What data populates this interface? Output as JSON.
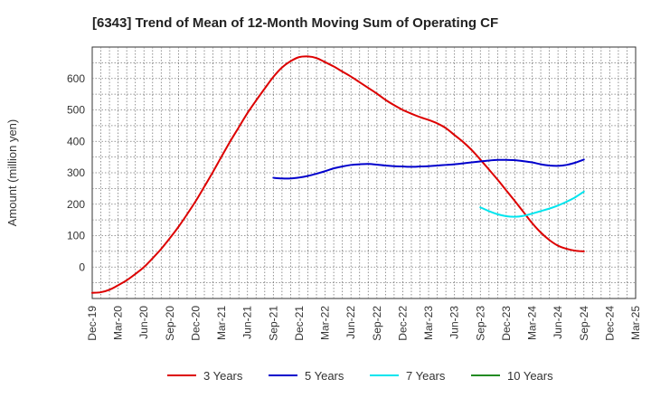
{
  "chart_data": {
    "type": "line",
    "title": "[6343]  Trend of Mean of 12-Month Moving Sum of Operating CF",
    "xlabel": "",
    "ylabel": "Amount (million yen)",
    "ylim": [
      -100,
      700
    ],
    "y_ticks": [
      0,
      100,
      200,
      300,
      400,
      500,
      600
    ],
    "x_ticks": [
      "Dec-19",
      "Mar-20",
      "Jun-20",
      "Sep-20",
      "Dec-20",
      "Mar-21",
      "Jun-21",
      "Sep-21",
      "Dec-21",
      "Mar-22",
      "Jun-22",
      "Sep-22",
      "Dec-22",
      "Mar-23",
      "Jun-23",
      "Sep-23",
      "Dec-23",
      "Mar-24",
      "Jun-24",
      "Sep-24",
      "Dec-24",
      "Mar-25"
    ],
    "grid": true,
    "legend_position": "bottom",
    "series": [
      {
        "name": "3 Years",
        "color": "#dd0000",
        "x": [
          "Dec-19",
          "Jan-20",
          "Feb-20",
          "Mar-20",
          "Apr-20",
          "May-20",
          "Jun-20",
          "Jul-20",
          "Aug-20",
          "Sep-20",
          "Oct-20",
          "Nov-20",
          "Dec-20",
          "Jan-21",
          "Feb-21",
          "Mar-21",
          "Apr-21",
          "May-21",
          "Jun-21",
          "Jul-21",
          "Aug-21",
          "Sep-21",
          "Oct-21",
          "Nov-21",
          "Dec-21",
          "Jan-22",
          "Feb-22",
          "Mar-22",
          "Apr-22",
          "May-22",
          "Jun-22",
          "Jul-22",
          "Aug-22",
          "Sep-22",
          "Oct-22",
          "Nov-22",
          "Dec-22",
          "Jan-23",
          "Feb-23",
          "Mar-23",
          "Apr-23",
          "May-23",
          "Jun-23",
          "Jul-23",
          "Aug-23",
          "Sep-23",
          "Oct-23",
          "Nov-23",
          "Dec-23",
          "Jan-24",
          "Feb-24",
          "Mar-24",
          "Apr-24",
          "May-24",
          "Jun-24",
          "Jul-24",
          "Aug-24",
          "Sep-24"
        ],
        "values": [
          -82,
          -80,
          -72,
          -58,
          -42,
          -22,
          0,
          28,
          58,
          92,
          128,
          168,
          210,
          256,
          303,
          352,
          400,
          445,
          490,
          530,
          568,
          605,
          635,
          655,
          668,
          670,
          665,
          652,
          638,
          622,
          606,
          588,
          570,
          552,
          532,
          515,
          500,
          488,
          477,
          468,
          457,
          442,
          420,
          398,
          372,
          342,
          310,
          278,
          244,
          210,
          175,
          140,
          110,
          86,
          68,
          58,
          52,
          50
        ],
        "style": "solid"
      },
      {
        "name": "5 Years",
        "color": "#0000cc",
        "x": [
          "Sep-21",
          "Oct-21",
          "Nov-21",
          "Dec-21",
          "Jan-22",
          "Feb-22",
          "Mar-22",
          "Apr-22",
          "May-22",
          "Jun-22",
          "Jul-22",
          "Aug-22",
          "Sep-22",
          "Oct-22",
          "Nov-22",
          "Dec-22",
          "Jan-23",
          "Feb-23",
          "Mar-23",
          "Apr-23",
          "May-23",
          "Jun-23",
          "Jul-23",
          "Aug-23",
          "Sep-23",
          "Oct-23",
          "Nov-23",
          "Dec-23",
          "Jan-24",
          "Feb-24",
          "Mar-24",
          "Apr-24",
          "May-24",
          "Jun-24",
          "Jul-24",
          "Aug-24",
          "Sep-24"
        ],
        "values": [
          284,
          282,
          282,
          285,
          290,
          297,
          305,
          314,
          320,
          325,
          327,
          328,
          326,
          323,
          321,
          320,
          319,
          320,
          321,
          323,
          325,
          327,
          330,
          333,
          336,
          339,
          341,
          341,
          340,
          337,
          333,
          327,
          323,
          322,
          325,
          332,
          342
        ],
        "style": "solid"
      },
      {
        "name": "7 Years",
        "color": "#00e5ee",
        "x": [
          "Sep-23",
          "Oct-23",
          "Nov-23",
          "Dec-23",
          "Jan-24",
          "Feb-24",
          "Mar-24",
          "Apr-24",
          "May-24",
          "Jun-24",
          "Jul-24",
          "Aug-24",
          "Sep-24"
        ],
        "values": [
          190,
          178,
          168,
          162,
          160,
          163,
          170,
          178,
          186,
          196,
          208,
          222,
          240
        ],
        "style": "solid"
      },
      {
        "name": "10 Years",
        "color": "#228b22",
        "x": [],
        "values": [],
        "style": "solid"
      }
    ]
  }
}
